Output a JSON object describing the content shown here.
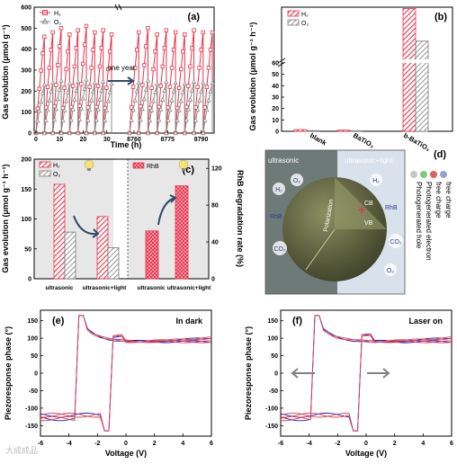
{
  "colors": {
    "h2": "#e8334a",
    "o2": "#8c8c8c",
    "line": "#1a1aa8",
    "dark_bg": "#6e7a78",
    "light_bg": "#d9e1ec"
  },
  "watermark": "大成成品",
  "panels": {
    "a": {
      "label": "(a)",
      "ylabel": "Gas evolution (μmol g⁻¹)",
      "xlabel": "Time (h)",
      "annotation": "one year",
      "legend": [
        "H₂",
        "O₂"
      ],
      "x_ticks_left": [
        "0",
        "10",
        "20",
        "30"
      ],
      "x_ticks_right": [
        "8760",
        "8775",
        "8790"
      ],
      "y_ticks": [
        "0",
        "100",
        "200",
        "300",
        "400",
        "500",
        "600"
      ]
    },
    "b": {
      "label": "(b)",
      "ylabel": "Gas evolution (μmol g⁻¹ h⁻¹)",
      "legend": [
        "H₂",
        "O₂"
      ],
      "categories": [
        "blank",
        "BaTiO₃",
        "b-BaTiO₃"
      ],
      "y_ticks": [
        "0",
        "10",
        "20",
        "30",
        "40",
        "50",
        "60"
      ],
      "y_ticks_top": [
        "50",
        "100",
        "150",
        "200",
        "250"
      ]
    },
    "c": {
      "label": "(c)",
      "ylabel_left": "Gas evolution (μmol g⁻¹ h⁻¹)",
      "ylabel_right": "RhB degradation rate (%)",
      "legend_left": [
        "H₂",
        "O₂"
      ],
      "legend_right": [
        "RhB"
      ],
      "categories_left": [
        "ultrasonic",
        "ultrasonic+light"
      ],
      "categories_right": [
        "ultrasonic",
        "ultrasonic+light"
      ],
      "y_ticks_left": [
        "0",
        "50",
        "100",
        "150",
        "200"
      ],
      "y_ticks_right": [
        "0",
        "40",
        "80",
        "120"
      ]
    },
    "d": {
      "label": "(d)",
      "left_title": "ultrasonic",
      "right_title": "ultrasonic+light",
      "polarization": "Polarization",
      "cb": "CB",
      "vb": "VB",
      "molecules": [
        "H₂",
        "O₂",
        "RhB",
        "CO₂",
        "H₂",
        "O₂",
        "RhB",
        "CO₂"
      ],
      "legend": [
        "Photogenerated hole",
        "Photogenerated electron",
        "free charge",
        "free charge"
      ]
    },
    "e": {
      "label": "(e)",
      "title": "In dark",
      "ylabel": "Piezoresponse phase (°)",
      "xlabel": "Voltage (V)",
      "x_ticks": [
        "-6",
        "-4",
        "-2",
        "0",
        "2",
        "4",
        "6"
      ],
      "y_ticks": [
        "-150",
        "-100",
        "-50",
        "0",
        "50",
        "100",
        "150"
      ]
    },
    "f": {
      "label": "(f)",
      "title": "Laser on",
      "ylabel": "Piezoresponse phase (°)",
      "xlabel": "Voltage (V)",
      "x_ticks": [
        "-6",
        "-4",
        "-2",
        "0",
        "2",
        "4",
        "6"
      ],
      "y_ticks": [
        "-150",
        "-100",
        "-50",
        "0",
        "50",
        "100",
        "150"
      ]
    }
  },
  "chart_data": [
    {
      "panel": "a",
      "type": "line",
      "xlabel": "Time (h)",
      "ylabel": "Gas evolution (μmol g⁻¹)",
      "ylim": [
        0,
        600
      ],
      "x_segments": [
        [
          0,
          32
        ],
        [
          8758,
          8795
        ]
      ],
      "series": [
        {
          "name": "H₂",
          "cycle_peaks": [
            460,
            480,
            500,
            470,
            490,
            510,
            480,
            490,
            470,
            480,
            500,
            470,
            490,
            480,
            470,
            490,
            480,
            480
          ]
        },
        {
          "name": "O₂",
          "cycle_peaks": [
            230,
            240,
            250,
            235,
            245,
            255,
            240,
            245,
            235,
            240,
            250,
            235,
            245,
            240,
            235,
            245,
            240,
            240
          ]
        }
      ]
    },
    {
      "panel": "b",
      "type": "bar",
      "categories": [
        "blank",
        "BaTiO₃",
        "b-BaTiO₃"
      ],
      "ylabel": "Gas evolution (μmol g⁻¹ h⁻¹)",
      "series": [
        {
          "name": "H₂",
          "values": [
            1.5,
            1.0,
            245
          ]
        },
        {
          "name": "O₂",
          "values": [
            0.6,
            0.4,
            120
          ]
        }
      ]
    },
    {
      "panel": "c-left",
      "type": "bar",
      "categories": [
        "ultrasonic",
        "ultrasonic+light"
      ],
      "ylim": [
        0,
        200
      ],
      "series": [
        {
          "name": "H₂",
          "values": [
            158,
            104
          ]
        },
        {
          "name": "O₂",
          "values": [
            78,
            52
          ]
        }
      ]
    },
    {
      "panel": "c-right",
      "type": "bar",
      "categories": [
        "ultrasonic",
        "ultrasonic+light"
      ],
      "ylim": [
        0,
        130
      ],
      "series": [
        {
          "name": "RhB",
          "values": [
            52,
            101
          ]
        }
      ]
    },
    {
      "panel": "e",
      "type": "line",
      "xlim": [
        -6,
        6
      ],
      "ylim": [
        -180,
        180
      ],
      "coercive_voltages": [
        -3.4,
        -1.1
      ]
    },
    {
      "panel": "f",
      "type": "line",
      "xlim": [
        -6,
        6
      ],
      "ylim": [
        -180,
        180
      ],
      "coercive_voltages": [
        -3.7,
        -0.5
      ]
    }
  ]
}
